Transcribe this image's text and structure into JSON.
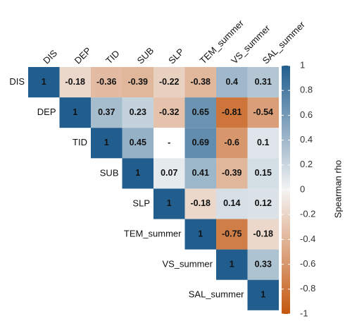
{
  "chart_data": {
    "type": "heatmap",
    "variables": [
      "DIS",
      "DEP",
      "TID",
      "SUB",
      "SLP",
      "TEM_summer",
      "VS_summer",
      "SAL_summer"
    ],
    "values": [
      [
        1,
        -0.18,
        -0.36,
        -0.39,
        -0.22,
        -0.38,
        0.4,
        0.31
      ],
      [
        null,
        1,
        0.37,
        0.23,
        -0.32,
        0.65,
        -0.81,
        -0.54
      ],
      [
        null,
        null,
        1,
        0.45,
        null,
        0.69,
        -0.6,
        0.1
      ],
      [
        null,
        null,
        null,
        1,
        0.07,
        0.41,
        -0.39,
        0.15
      ],
      [
        null,
        null,
        null,
        null,
        1,
        -0.18,
        0.14,
        0.12
      ],
      [
        null,
        null,
        null,
        null,
        null,
        1,
        -0.75,
        -0.18
      ],
      [
        null,
        null,
        null,
        null,
        null,
        null,
        1,
        0.33
      ],
      [
        null,
        null,
        null,
        null,
        null,
        null,
        null,
        1
      ]
    ],
    "value_labels": [
      [
        null,
        null,
        null,
        null,
        null,
        null,
        null,
        null
      ],
      [
        null,
        null,
        null,
        null,
        null,
        null,
        null,
        null
      ],
      [
        null,
        null,
        null,
        null,
        "-",
        null,
        null,
        null
      ],
      [
        null,
        null,
        null,
        null,
        null,
        null,
        null,
        null
      ],
      [
        null,
        null,
        null,
        null,
        null,
        null,
        null,
        null
      ],
      [
        null,
        null,
        null,
        null,
        null,
        null,
        null,
        null
      ],
      [
        null,
        null,
        null,
        null,
        null,
        null,
        null,
        null
      ],
      [
        null,
        null,
        null,
        null,
        null,
        null,
        null,
        null
      ]
    ],
    "colorscale": [
      "#c4570f",
      "#f4f4f4",
      "#215e8e"
    ],
    "clim": [
      -1,
      1
    ],
    "cticks": [
      1,
      0.8,
      0.6,
      0.4,
      0.2,
      0,
      -0.2,
      -0.4,
      -0.6,
      -0.8,
      -1
    ],
    "colorbar_title": "Spearman rho"
  }
}
